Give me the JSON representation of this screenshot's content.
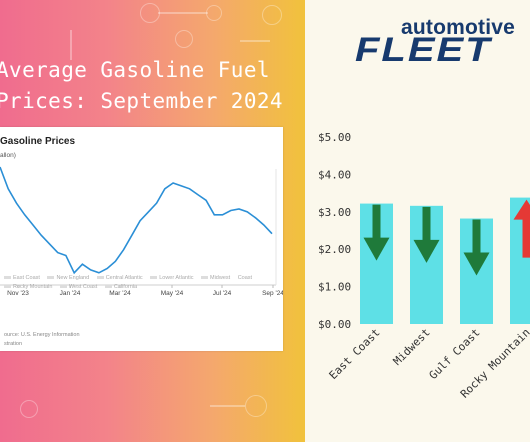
{
  "headline": {
    "line1": "Average Gasoline Fuel",
    "line2": "Prices: September 2024"
  },
  "brand": {
    "top": "automotive",
    "bottom": "FLEET"
  },
  "inset_chart": {
    "title": "Gasoline Prices",
    "unit": "allon)",
    "legend": [
      "East Coast",
      "New England",
      "Central Atlantic",
      "Lower Atlantic",
      "Midwest",
      "Coast",
      "Rocky Mountain",
      "West Coast",
      "California"
    ],
    "source_line1": "ource: U.S. Energy Information",
    "source_line2": "stration",
    "x_tick_labels": [
      "Nov '23",
      "Jan '24",
      "Mar '24",
      "May '24",
      "Jul '24",
      "Sep '24"
    ]
  },
  "colors": {
    "bar": "#5ee0e6",
    "arrow_down": "#1f7a3a",
    "arrow_up": "#e53935",
    "line": "#2b8fd6",
    "brand": "#173a6e"
  },
  "chart_data": [
    {
      "type": "bar",
      "title": "",
      "xlabel": "",
      "ylabel": "",
      "categories": [
        "East Coast",
        "Midwest",
        "Gulf Coast",
        "Rocky Mountain"
      ],
      "values": [
        3.22,
        3.16,
        2.82,
        3.38
      ],
      "trend": [
        "down",
        "down",
        "down",
        "up"
      ],
      "ylim": [
        0,
        5
      ],
      "y_tick_labels": [
        "$0.00",
        "$1.00",
        "$2.00",
        "$3.00",
        "$4.00",
        "$5.00"
      ],
      "grid": false
    },
    {
      "type": "line",
      "title": "Gasoline Prices",
      "ylabel": "allon)",
      "x_tick_labels": [
        "Nov '23",
        "Jan '24",
        "Mar '24",
        "May '24",
        "Jul '24",
        "Sep '24"
      ],
      "series": [
        {
          "values": [
            3.45,
            3.3,
            3.2,
            3.12,
            3.05,
            2.98,
            2.92,
            2.86,
            2.84,
            2.72,
            2.78,
            2.74,
            2.72,
            2.75,
            2.8,
            2.88,
            2.98,
            3.08,
            3.14,
            3.2,
            3.3,
            3.34,
            3.32,
            3.3,
            3.26,
            3.22,
            3.12,
            3.12,
            3.15,
            3.16,
            3.14,
            3.1,
            3.05,
            2.99
          ]
        }
      ]
    }
  ]
}
